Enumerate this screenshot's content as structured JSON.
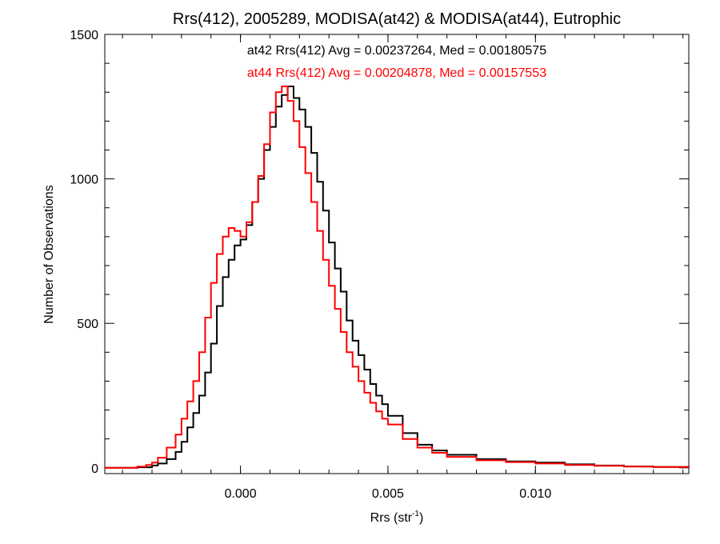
{
  "chart_data": {
    "type": "line",
    "step": true,
    "title": "Rrs(412), 2005289, MODISA(at42) & MODISA(at44), Eutrophic",
    "xlabel_base": "Rrs (str",
    "xlabel_sup": "-1",
    "xlabel_close": ")",
    "ylabel": "Number of Observations",
    "xlim": [
      -0.0046,
      0.0152
    ],
    "ylim": [
      -20,
      1500
    ],
    "x_ticks": [
      {
        "value": 0.0,
        "label": "0.000"
      },
      {
        "value": 0.005,
        "label": "0.005"
      },
      {
        "value": 0.01,
        "label": "0.010"
      }
    ],
    "y_ticks": [
      {
        "value": 0,
        "label": "0"
      },
      {
        "value": 500,
        "label": "500"
      },
      {
        "value": 1000,
        "label": "1000"
      },
      {
        "value": 1500,
        "label": "1500"
      }
    ],
    "grid": false,
    "annotations": [
      {
        "text": "at42 Rrs(412) Avg = 0.00237264, Med = 0.00180575",
        "color": "#000000"
      },
      {
        "text": "at44 Rrs(412) Avg = 0.00204878, Med = 0.00157553",
        "color": "#ff0000"
      }
    ],
    "series": [
      {
        "color": "#000000",
        "x": [
          -0.0046,
          -0.004,
          -0.0035,
          -0.003,
          -0.0028,
          -0.0025,
          -0.0022,
          -0.002,
          -0.0018,
          -0.0016,
          -0.0014,
          -0.0012,
          -0.001,
          -0.0008,
          -0.0006,
          -0.0004,
          -0.0002,
          0.0,
          0.0002,
          0.0004,
          0.0006,
          0.0008,
          0.001,
          0.0012,
          0.0014,
          0.0016,
          0.0018,
          0.002,
          0.0022,
          0.0024,
          0.0026,
          0.0028,
          0.003,
          0.0032,
          0.0034,
          0.0036,
          0.0038,
          0.004,
          0.0042,
          0.0044,
          0.0046,
          0.0048,
          0.005,
          0.0055,
          0.006,
          0.0065,
          0.007,
          0.008,
          0.009,
          0.01,
          0.011,
          0.012,
          0.013,
          0.014,
          0.0152
        ],
        "y": [
          0,
          0,
          2,
          8,
          15,
          30,
          55,
          90,
          140,
          190,
          250,
          330,
          430,
          560,
          660,
          720,
          770,
          790,
          840,
          920,
          1000,
          1100,
          1180,
          1250,
          1290,
          1320,
          1280,
          1240,
          1180,
          1090,
          990,
          890,
          780,
          690,
          610,
          510,
          440,
          390,
          340,
          290,
          250,
          220,
          180,
          120,
          80,
          60,
          45,
          30,
          22,
          18,
          12,
          8,
          5,
          3,
          2
        ]
      },
      {
        "color": "#ff0000",
        "x": [
          -0.0046,
          -0.004,
          -0.0035,
          -0.0032,
          -0.003,
          -0.0028,
          -0.0025,
          -0.0022,
          -0.002,
          -0.0018,
          -0.0016,
          -0.0014,
          -0.0012,
          -0.001,
          -0.0008,
          -0.0006,
          -0.0004,
          -0.0002,
          0.0,
          0.0002,
          0.0004,
          0.0006,
          0.0008,
          0.001,
          0.0012,
          0.0014,
          0.0016,
          0.0018,
          0.002,
          0.0022,
          0.0024,
          0.0026,
          0.0028,
          0.003,
          0.0032,
          0.0034,
          0.0036,
          0.0038,
          0.004,
          0.0042,
          0.0044,
          0.0046,
          0.0048,
          0.005,
          0.0055,
          0.006,
          0.0065,
          0.007,
          0.008,
          0.009,
          0.01,
          0.011,
          0.012,
          0.013,
          0.014,
          0.0152
        ],
        "y": [
          0,
          0,
          4,
          10,
          18,
          35,
          70,
          115,
          170,
          230,
          300,
          400,
          520,
          640,
          740,
          800,
          830,
          820,
          800,
          850,
          920,
          1010,
          1120,
          1230,
          1300,
          1320,
          1270,
          1200,
          1110,
          1020,
          920,
          820,
          720,
          630,
          550,
          470,
          400,
          350,
          300,
          260,
          225,
          195,
          170,
          150,
          100,
          70,
          52,
          38,
          26,
          20,
          15,
          10,
          7,
          4,
          3,
          2
        ]
      }
    ]
  }
}
